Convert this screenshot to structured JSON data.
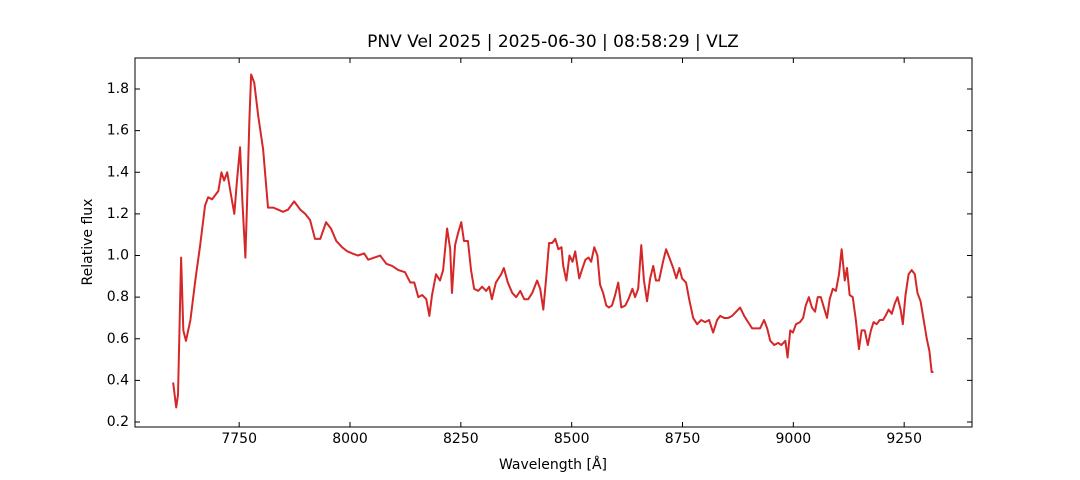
{
  "chart_data": {
    "type": "line",
    "title": "PNV Vel 2025 | 2025-06-30 | 08:58:29 | VLZ",
    "x_label": "Wavelength [Å]",
    "y_label": "Relative flux",
    "color": "#d62728",
    "xlim": [
      7515,
      9403
    ],
    "ylim": [
      0.176,
      1.949
    ],
    "xticks": [
      7750,
      8000,
      8250,
      8500,
      8750,
      9000,
      9250
    ],
    "yticks": [
      0.2,
      0.4,
      0.6,
      0.8,
      {
        "value": 1,
        "label": "1.0"
      },
      1.2,
      1.4,
      1.6,
      1.8
    ],
    "x": [
      7601,
      7608,
      7612,
      7619,
      7624,
      7630,
      7640,
      7651,
      7662,
      7673,
      7680,
      7689,
      7696,
      7703,
      7710,
      7716,
      7723,
      7730,
      7739,
      7745,
      7752,
      7757,
      7764,
      7768,
      7773,
      7777,
      7784,
      7793,
      7804,
      7815,
      7827,
      7838,
      7849,
      7860,
      7874,
      7888,
      7899,
      7910,
      7921,
      7933,
      7946,
      7957,
      7969,
      7982,
      7994,
      8005,
      8018,
      8032,
      8041,
      8055,
      8068,
      8082,
      8095,
      8109,
      8124,
      8136,
      8145,
      8154,
      8163,
      8172,
      8179,
      8185,
      8194,
      8203,
      8210,
      8219,
      8226,
      8230,
      8237,
      8244,
      8251,
      8257,
      8266,
      8273,
      8280,
      8289,
      8298,
      8307,
      8314,
      8320,
      8329,
      8341,
      8347,
      8356,
      8366,
      8375,
      8384,
      8393,
      8402,
      8411,
      8422,
      8429,
      8436,
      8442,
      8449,
      8456,
      8463,
      8470,
      8477,
      8481,
      8488,
      8495,
      8502,
      8508,
      8517,
      8523,
      8531,
      8538,
      8544,
      8551,
      8558,
      8564,
      8571,
      8578,
      8584,
      8591,
      8598,
      8605,
      8612,
      8621,
      8628,
      8637,
      8643,
      8650,
      8657,
      8663,
      8670,
      8677,
      8684,
      8690,
      8697,
      8706,
      8713,
      8722,
      8729,
      8736,
      8743,
      8749,
      8758,
      8765,
      8774,
      8783,
      8792,
      8801,
      8810,
      8819,
      8828,
      8835,
      8844,
      8853,
      8862,
      8871,
      8880,
      8889,
      8898,
      8907,
      8916,
      8925,
      8934,
      8941,
      8948,
      8957,
      8966,
      8973,
      8982,
      8987,
      8993,
      8999,
      9006,
      9015,
      9022,
      9028,
      9035,
      9042,
      9049,
      9055,
      9062,
      9069,
      9076,
      9082,
      9089,
      9096,
      9103,
      9109,
      9116,
      9121,
      9127,
      9134,
      9141,
      9148,
      9154,
      9161,
      9168,
      9175,
      9181,
      9188,
      9195,
      9202,
      9208,
      9215,
      9222,
      9229,
      9235,
      9242,
      9247,
      9253,
      9260,
      9267,
      9274,
      9280,
      9287,
      9294,
      9301,
      9307,
      9312,
      9316
    ],
    "values": [
      0.39,
      0.27,
      0.33,
      0.99,
      0.64,
      0.59,
      0.69,
      0.88,
      1.05,
      1.24,
      1.28,
      1.27,
      1.29,
      1.31,
      1.4,
      1.36,
      1.4,
      1.31,
      1.2,
      1.36,
      1.52,
      1.27,
      0.99,
      1.27,
      1.65,
      1.87,
      1.83,
      1.67,
      1.51,
      1.23,
      1.23,
      1.22,
      1.21,
      1.22,
      1.26,
      1.22,
      1.2,
      1.17,
      1.08,
      1.08,
      1.16,
      1.13,
      1.07,
      1.04,
      1.02,
      1.01,
      1.0,
      1.01,
      0.98,
      0.99,
      1.0,
      0.96,
      0.95,
      0.93,
      0.92,
      0.87,
      0.87,
      0.8,
      0.81,
      0.79,
      0.71,
      0.81,
      0.91,
      0.88,
      0.93,
      1.13,
      1.03,
      0.82,
      1.05,
      1.11,
      1.16,
      1.07,
      1.07,
      0.93,
      0.84,
      0.83,
      0.85,
      0.83,
      0.85,
      0.79,
      0.87,
      0.91,
      0.94,
      0.87,
      0.82,
      0.8,
      0.83,
      0.79,
      0.79,
      0.82,
      0.88,
      0.84,
      0.74,
      0.88,
      1.06,
      1.06,
      1.08,
      1.03,
      1.04,
      0.95,
      0.88,
      1.0,
      0.97,
      1.02,
      0.89,
      0.93,
      0.98,
      0.99,
      0.97,
      1.04,
      1.0,
      0.86,
      0.82,
      0.76,
      0.75,
      0.76,
      0.81,
      0.87,
      0.75,
      0.76,
      0.79,
      0.84,
      0.8,
      0.84,
      1.05,
      0.88,
      0.78,
      0.89,
      0.95,
      0.88,
      0.88,
      0.97,
      1.03,
      0.98,
      0.94,
      0.89,
      0.94,
      0.89,
      0.87,
      0.79,
      0.7,
      0.67,
      0.69,
      0.68,
      0.69,
      0.63,
      0.69,
      0.71,
      0.7,
      0.7,
      0.71,
      0.73,
      0.75,
      0.71,
      0.68,
      0.65,
      0.65,
      0.65,
      0.69,
      0.65,
      0.59,
      0.57,
      0.58,
      0.57,
      0.59,
      0.51,
      0.64,
      0.63,
      0.67,
      0.68,
      0.7,
      0.76,
      0.8,
      0.75,
      0.73,
      0.8,
      0.8,
      0.75,
      0.7,
      0.79,
      0.84,
      0.83,
      0.91,
      1.03,
      0.88,
      0.94,
      0.81,
      0.8,
      0.69,
      0.55,
      0.64,
      0.64,
      0.57,
      0.64,
      0.68,
      0.67,
      0.69,
      0.69,
      0.71,
      0.74,
      0.72,
      0.77,
      0.8,
      0.74,
      0.67,
      0.81,
      0.91,
      0.93,
      0.91,
      0.82,
      0.78,
      0.69,
      0.6,
      0.54,
      0.44,
      0.44
    ]
  }
}
